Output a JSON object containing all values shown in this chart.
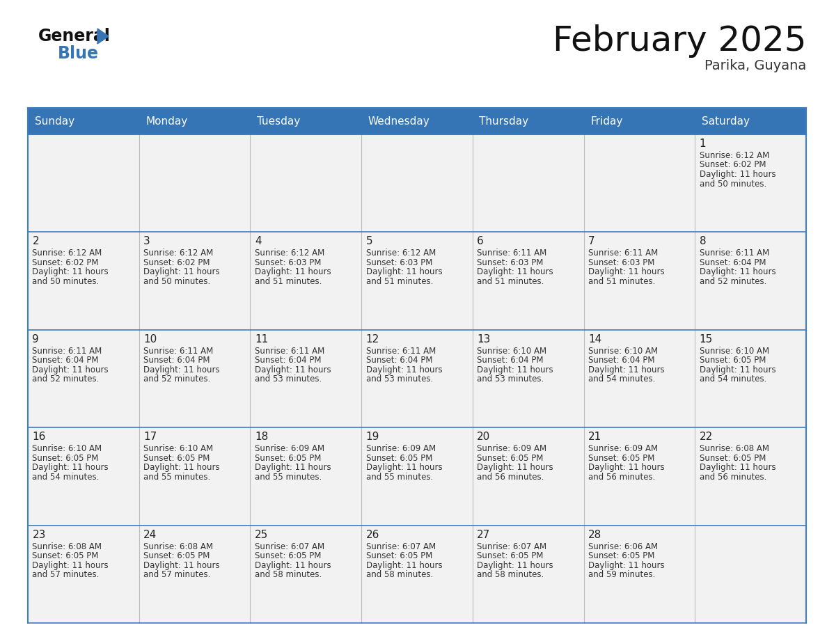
{
  "title": "February 2025",
  "subtitle": "Parika, Guyana",
  "days_of_week": [
    "Sunday",
    "Monday",
    "Tuesday",
    "Wednesday",
    "Thursday",
    "Friday",
    "Saturday"
  ],
  "header_bg": "#3575B5",
  "header_text_color": "#FFFFFF",
  "cell_bg": "#F2F2F2",
  "border_color": "#3A7DC9",
  "text_color": "#333333",
  "day_num_color": "#222222",
  "calendar": [
    [
      null,
      null,
      null,
      null,
      null,
      null,
      {
        "day": 1,
        "sunrise": "6:12 AM",
        "sunset": "6:02 PM",
        "daylight_l1": "11 hours",
        "daylight_l2": "and 50 minutes."
      }
    ],
    [
      {
        "day": 2,
        "sunrise": "6:12 AM",
        "sunset": "6:02 PM",
        "daylight_l1": "11 hours",
        "daylight_l2": "and 50 minutes."
      },
      {
        "day": 3,
        "sunrise": "6:12 AM",
        "sunset": "6:02 PM",
        "daylight_l1": "11 hours",
        "daylight_l2": "and 50 minutes."
      },
      {
        "day": 4,
        "sunrise": "6:12 AM",
        "sunset": "6:03 PM",
        "daylight_l1": "11 hours",
        "daylight_l2": "and 51 minutes."
      },
      {
        "day": 5,
        "sunrise": "6:12 AM",
        "sunset": "6:03 PM",
        "daylight_l1": "11 hours",
        "daylight_l2": "and 51 minutes."
      },
      {
        "day": 6,
        "sunrise": "6:11 AM",
        "sunset": "6:03 PM",
        "daylight_l1": "11 hours",
        "daylight_l2": "and 51 minutes."
      },
      {
        "day": 7,
        "sunrise": "6:11 AM",
        "sunset": "6:03 PM",
        "daylight_l1": "11 hours",
        "daylight_l2": "and 51 minutes."
      },
      {
        "day": 8,
        "sunrise": "6:11 AM",
        "sunset": "6:04 PM",
        "daylight_l1": "11 hours",
        "daylight_l2": "and 52 minutes."
      }
    ],
    [
      {
        "day": 9,
        "sunrise": "6:11 AM",
        "sunset": "6:04 PM",
        "daylight_l1": "11 hours",
        "daylight_l2": "and 52 minutes."
      },
      {
        "day": 10,
        "sunrise": "6:11 AM",
        "sunset": "6:04 PM",
        "daylight_l1": "11 hours",
        "daylight_l2": "and 52 minutes."
      },
      {
        "day": 11,
        "sunrise": "6:11 AM",
        "sunset": "6:04 PM",
        "daylight_l1": "11 hours",
        "daylight_l2": "and 53 minutes."
      },
      {
        "day": 12,
        "sunrise": "6:11 AM",
        "sunset": "6:04 PM",
        "daylight_l1": "11 hours",
        "daylight_l2": "and 53 minutes."
      },
      {
        "day": 13,
        "sunrise": "6:10 AM",
        "sunset": "6:04 PM",
        "daylight_l1": "11 hours",
        "daylight_l2": "and 53 minutes."
      },
      {
        "day": 14,
        "sunrise": "6:10 AM",
        "sunset": "6:04 PM",
        "daylight_l1": "11 hours",
        "daylight_l2": "and 54 minutes."
      },
      {
        "day": 15,
        "sunrise": "6:10 AM",
        "sunset": "6:05 PM",
        "daylight_l1": "11 hours",
        "daylight_l2": "and 54 minutes."
      }
    ],
    [
      {
        "day": 16,
        "sunrise": "6:10 AM",
        "sunset": "6:05 PM",
        "daylight_l1": "11 hours",
        "daylight_l2": "and 54 minutes."
      },
      {
        "day": 17,
        "sunrise": "6:10 AM",
        "sunset": "6:05 PM",
        "daylight_l1": "11 hours",
        "daylight_l2": "and 55 minutes."
      },
      {
        "day": 18,
        "sunrise": "6:09 AM",
        "sunset": "6:05 PM",
        "daylight_l1": "11 hours",
        "daylight_l2": "and 55 minutes."
      },
      {
        "day": 19,
        "sunrise": "6:09 AM",
        "sunset": "6:05 PM",
        "daylight_l1": "11 hours",
        "daylight_l2": "and 55 minutes."
      },
      {
        "day": 20,
        "sunrise": "6:09 AM",
        "sunset": "6:05 PM",
        "daylight_l1": "11 hours",
        "daylight_l2": "and 56 minutes."
      },
      {
        "day": 21,
        "sunrise": "6:09 AM",
        "sunset": "6:05 PM",
        "daylight_l1": "11 hours",
        "daylight_l2": "and 56 minutes."
      },
      {
        "day": 22,
        "sunrise": "6:08 AM",
        "sunset": "6:05 PM",
        "daylight_l1": "11 hours",
        "daylight_l2": "and 56 minutes."
      }
    ],
    [
      {
        "day": 23,
        "sunrise": "6:08 AM",
        "sunset": "6:05 PM",
        "daylight_l1": "11 hours",
        "daylight_l2": "and 57 minutes."
      },
      {
        "day": 24,
        "sunrise": "6:08 AM",
        "sunset": "6:05 PM",
        "daylight_l1": "11 hours",
        "daylight_l2": "and 57 minutes."
      },
      {
        "day": 25,
        "sunrise": "6:07 AM",
        "sunset": "6:05 PM",
        "daylight_l1": "11 hours",
        "daylight_l2": "and 58 minutes."
      },
      {
        "day": 26,
        "sunrise": "6:07 AM",
        "sunset": "6:05 PM",
        "daylight_l1": "11 hours",
        "daylight_l2": "and 58 minutes."
      },
      {
        "day": 27,
        "sunrise": "6:07 AM",
        "sunset": "6:05 PM",
        "daylight_l1": "11 hours",
        "daylight_l2": "and 58 minutes."
      },
      {
        "day": 28,
        "sunrise": "6:06 AM",
        "sunset": "6:05 PM",
        "daylight_l1": "11 hours",
        "daylight_l2": "and 59 minutes."
      },
      null
    ]
  ],
  "logo_general_color": "#111111",
  "logo_blue_color": "#3575B5",
  "title_fontsize": 36,
  "subtitle_fontsize": 14,
  "header_fontsize": 11,
  "day_num_fontsize": 11,
  "cell_text_fontsize": 8.5
}
